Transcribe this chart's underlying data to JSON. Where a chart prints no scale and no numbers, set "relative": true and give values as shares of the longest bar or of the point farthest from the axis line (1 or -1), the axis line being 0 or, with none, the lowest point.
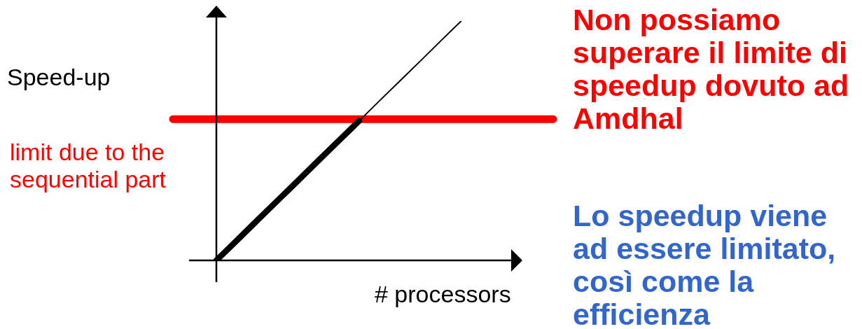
{
  "chart_data": {
    "type": "line",
    "xlabel": "# processors",
    "ylabel": "Speed-up",
    "relative": true,
    "categories": [
      null,
      null,
      null,
      null,
      null,
      null,
      null,
      null,
      null,
      null,
      null,
      null,
      null,
      null,
      null,
      null
    ],
    "series": [
      {
        "color": "#000000",
        "values": [
          0,
          0.083,
          0.167,
          0.25,
          0.333,
          0.417,
          0.5,
          0.583,
          0.667,
          0.75,
          0.833,
          0.917,
          1,
          null,
          null,
          null
        ]
      },
      {
        "color": "#000000",
        "values": [
          0,
          0.083,
          0.167,
          0.25,
          0.333,
          0.417,
          0.5,
          0.583,
          null,
          null,
          null,
          null,
          null,
          null,
          null,
          null
        ]
      }
    ],
    "ref_lines": [
      {
        "axis": "y",
        "value": 0.59,
        "label": "limit due to the sequential part",
        "color": "#ff0000"
      }
    ],
    "annotations": [
      "Non possiamo superare il limite di speedup dovuto ad Amdhal",
      "Lo speedup viene ad essere limitato, così come la efficienza"
    ]
  }
}
